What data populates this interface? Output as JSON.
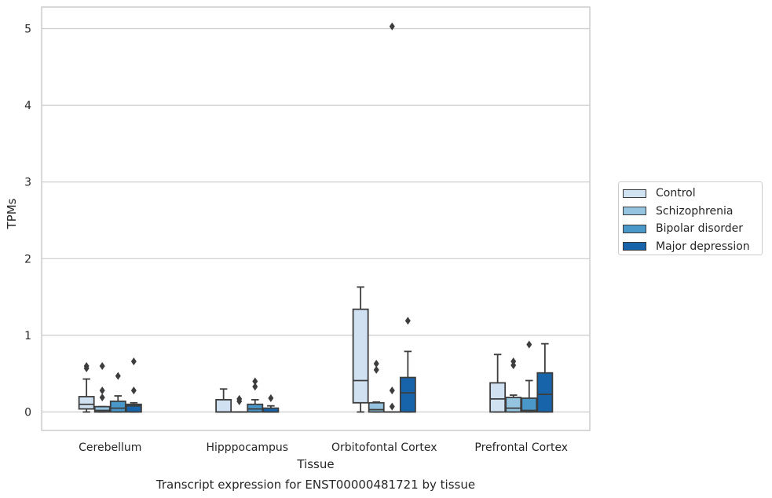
{
  "chart_data": {
    "type": "box",
    "title": "Transcript expression for ENST00000481721 by tissue",
    "xlabel": "Tissue",
    "ylabel": "TPMs",
    "ylim": [
      -0.25,
      5.3
    ],
    "yticks": [
      0,
      1,
      2,
      3,
      4,
      5
    ],
    "grid": "horizontal",
    "legend_position": "right",
    "categories": [
      "Cerebellum",
      "Hipppocampus",
      "Orbitofontal Cortex",
      "Prefrontal Cortex"
    ],
    "series": [
      {
        "name": "Control",
        "color": "#d0e1f2",
        "boxes": [
          {
            "whislo": 0.0,
            "q1": 0.04,
            "med": 0.1,
            "q3": 0.2,
            "whishi": 0.43,
            "fliers": [
              0.57,
              0.6
            ]
          },
          {
            "whislo": 0.0,
            "q1": 0.0,
            "med": 0.0,
            "q3": 0.16,
            "whishi": 0.3,
            "fliers": []
          },
          {
            "whislo": 0.0,
            "q1": 0.12,
            "med": 0.41,
            "q3": 1.34,
            "whishi": 1.63,
            "fliers": []
          },
          {
            "whislo": 0.0,
            "q1": 0.0,
            "med": 0.17,
            "q3": 0.38,
            "whishi": 0.75,
            "fliers": []
          }
        ]
      },
      {
        "name": "Schizophrenia",
        "color": "#94c4df",
        "boxes": [
          {
            "whislo": 0.0,
            "q1": 0.0,
            "med": 0.02,
            "q3": 0.07,
            "whishi": 0.07,
            "fliers": [
              0.19,
              0.28,
              0.6
            ]
          },
          {
            "whislo": 0.0,
            "q1": 0.0,
            "med": 0.0,
            "q3": 0.0,
            "whishi": 0.0,
            "fliers": [
              0.14,
              0.17
            ]
          },
          {
            "whislo": 0.0,
            "q1": 0.0,
            "med": 0.03,
            "q3": 0.12,
            "whishi": 0.13,
            "fliers": [
              0.55,
              0.63
            ]
          },
          {
            "whislo": 0.0,
            "q1": 0.0,
            "med": 0.05,
            "q3": 0.19,
            "whishi": 0.22,
            "fliers": [
              0.61,
              0.66
            ]
          }
        ]
      },
      {
        "name": "Bipolar disorder",
        "color": "#4a98c9",
        "boxes": [
          {
            "whislo": 0.0,
            "q1": 0.0,
            "med": 0.05,
            "q3": 0.14,
            "whishi": 0.21,
            "fliers": [
              0.47
            ]
          },
          {
            "whislo": 0.0,
            "q1": 0.0,
            "med": 0.04,
            "q3": 0.1,
            "whishi": 0.16,
            "fliers": [
              0.33,
              0.4
            ]
          },
          {
            "whislo": 0.0,
            "q1": 0.0,
            "med": 0.0,
            "q3": 0.0,
            "whishi": 0.0,
            "fliers": [
              0.07,
              0.28,
              5.03
            ]
          },
          {
            "whislo": 0.0,
            "q1": 0.0,
            "med": 0.02,
            "q3": 0.18,
            "whishi": 0.41,
            "fliers": [
              0.88
            ]
          }
        ]
      },
      {
        "name": "Major depression",
        "color": "#1764ab",
        "boxes": [
          {
            "whislo": 0.0,
            "q1": 0.0,
            "med": 0.08,
            "q3": 0.1,
            "whishi": 0.12,
            "fliers": [
              0.28,
              0.66
            ]
          },
          {
            "whislo": 0.0,
            "q1": 0.0,
            "med": 0.0,
            "q3": 0.05,
            "whishi": 0.08,
            "fliers": [
              0.18
            ]
          },
          {
            "whislo": 0.0,
            "q1": 0.0,
            "med": 0.25,
            "q3": 0.45,
            "whishi": 0.79,
            "fliers": [
              1.19
            ]
          },
          {
            "whislo": 0.0,
            "q1": 0.0,
            "med": 0.23,
            "q3": 0.51,
            "whishi": 0.89,
            "fliers": []
          }
        ]
      }
    ]
  }
}
